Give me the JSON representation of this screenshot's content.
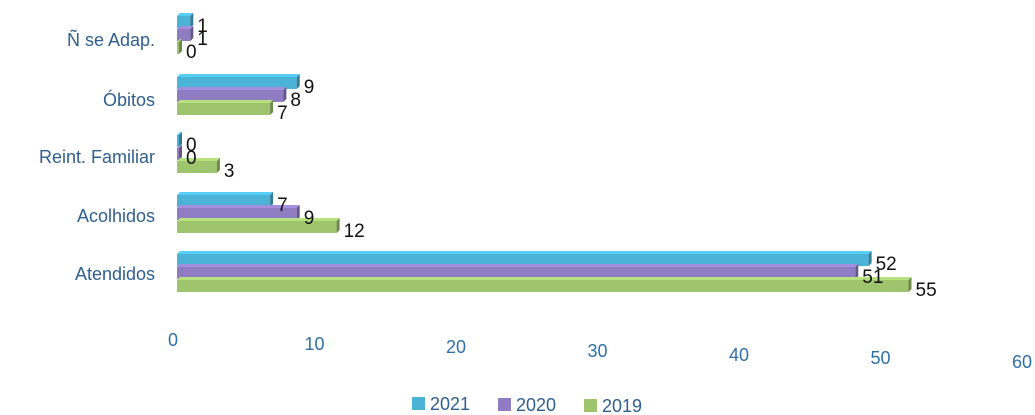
{
  "chart_data": {
    "type": "bar",
    "orientation": "horizontal",
    "categories": [
      "Ñ se Adap.",
      "Óbitos",
      "Reint. Familiar",
      "Acolhidos",
      "Atendidos"
    ],
    "series": [
      {
        "name": "2021",
        "values": [
          1,
          9,
          0,
          7,
          52
        ],
        "color": "#4bb3d6"
      },
      {
        "name": "2020",
        "values": [
          1,
          8,
          0,
          9,
          51
        ],
        "color": "#8f7cc2"
      },
      {
        "name": "2019",
        "values": [
          0,
          7,
          3,
          12,
          55
        ],
        "color": "#9fc46e"
      }
    ],
    "xlim": [
      0,
      60
    ],
    "xticks": [
      0,
      10,
      20,
      30,
      40,
      50,
      60
    ],
    "xtick_labels": [
      "0",
      "10",
      "20",
      "30",
      "40",
      "50",
      "60"
    ],
    "grid": false,
    "legend_position": "bottom"
  }
}
